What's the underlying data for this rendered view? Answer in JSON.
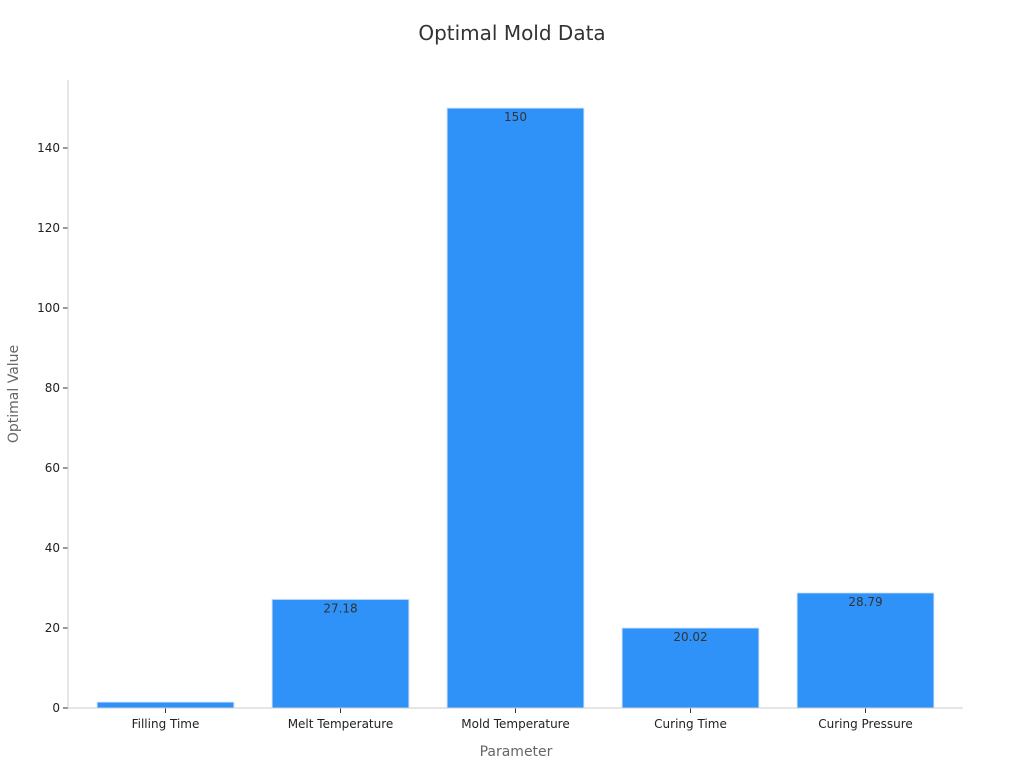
{
  "chart_data": {
    "type": "bar",
    "title": "Optimal Mold Data",
    "xlabel": "Parameter",
    "ylabel": "Optimal Value",
    "categories": [
      "Filling Time",
      "Melt Temperature",
      "Mold Temperature",
      "Curing Time",
      "Curing Pressure"
    ],
    "values": [
      1.5,
      27.18,
      150,
      20.02,
      28.79
    ],
    "data_labels": [
      "",
      "27.18",
      "150",
      "20.02",
      "28.79"
    ],
    "ylim": [
      0,
      157
    ],
    "yticks": [
      0,
      20,
      40,
      60,
      80,
      100,
      120,
      140
    ],
    "grid": false,
    "bar_color": "#2f92f8",
    "axis_color": "#cccccc"
  }
}
